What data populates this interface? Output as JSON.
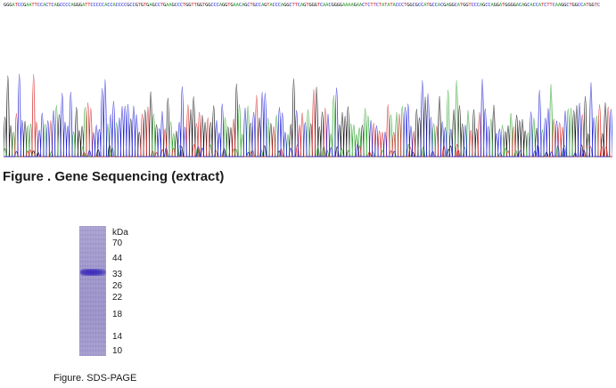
{
  "sequence": "GGGATCCGAATTCCACTCAGCCCCAGGGATTCCCCCACCACCCCGCCGTGTGAGCCTGAAGCCCTGGTTGGTGGCCCAGGTGAACAGCTGCCAGTACCCAGGCTTCAGTGGGTCAACGGGGAAAAGAACTCTTCTATATACCCTGGCGCCATGCCACGAGGCATGGTCCCAGCCAGGATGGGGACAGCACCATCTTCAAGGCTGGCCATGGTC",
  "base_colors": {
    "A": "#2ca02c",
    "C": "#1f1fd6",
    "G": "#111111",
    "T": "#d62728"
  },
  "figure1_caption": "Figure . Gene Sequencing (extract)",
  "gel": {
    "unit_label": "kDa",
    "markers": [
      "70",
      "44",
      "33",
      "26",
      "22",
      "18",
      "14",
      "10"
    ],
    "lane_color": "#9d95c9",
    "band_color": "#3c2bb8"
  },
  "figure2_caption": "Figure. SDS-PAGE"
}
